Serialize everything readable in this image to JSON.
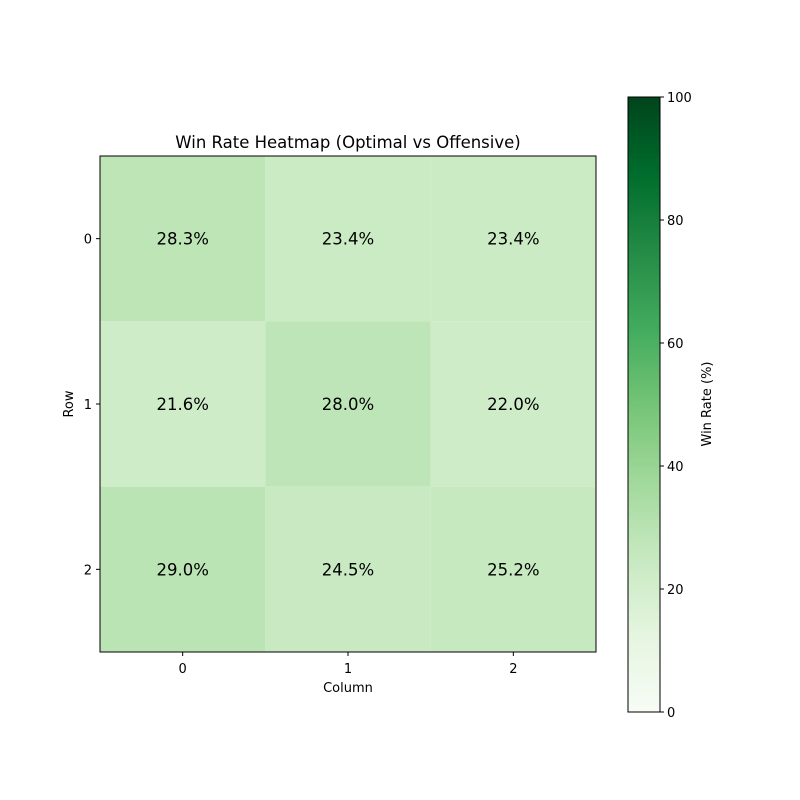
{
  "chart_data": {
    "type": "heatmap",
    "title": "Win Rate Heatmap (Optimal vs Offensive)",
    "xlabel": "Column",
    "ylabel": "Row",
    "x_categories": [
      "0",
      "1",
      "2"
    ],
    "y_categories": [
      "0",
      "1",
      "2"
    ],
    "values": [
      [
        28.3,
        23.4,
        23.4
      ],
      [
        21.6,
        28.0,
        22.0
      ],
      [
        29.0,
        24.5,
        25.2
      ]
    ],
    "cell_labels": [
      [
        "28.3%",
        "23.4%",
        "23.4%"
      ],
      [
        "21.6%",
        "28.0%",
        "22.0%"
      ],
      [
        "29.0%",
        "24.5%",
        "25.2%"
      ]
    ],
    "colorbar": {
      "label": "Win Rate (%)",
      "range": [
        0,
        100
      ],
      "ticks": [
        "0",
        "20",
        "40",
        "60",
        "80",
        "100"
      ],
      "colormap": "Greens"
    },
    "colors": {
      "greens_stops": [
        "#f7fcf5",
        "#e5f5e0",
        "#c7e9c0",
        "#a1d99b",
        "#74c476",
        "#41ab5d",
        "#238b45",
        "#006d2c",
        "#00441b"
      ]
    }
  }
}
